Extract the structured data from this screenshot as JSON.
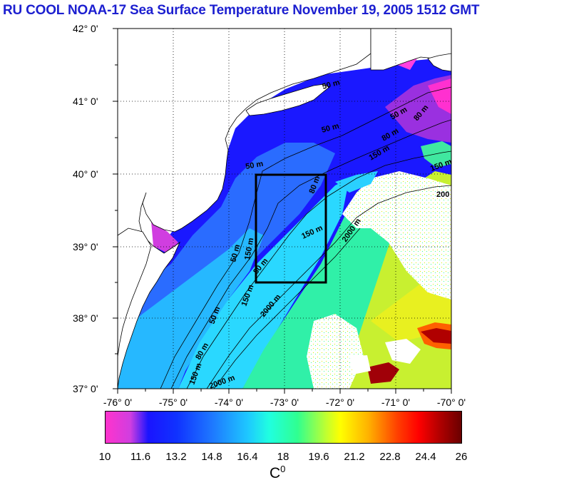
{
  "title": "RU COOL  NOAA-17 Sea Surface Temperature November 19, 2005 1512 GMT",
  "lat_labels": [
    "42° 0'",
    "41° 0'",
    "40° 0'",
    "39° 0'",
    "38° 0'",
    "37° 0'"
  ],
  "lon_labels": [
    "-76° 0'",
    "-75° 0'",
    "-74° 0'",
    "-73° 0'",
    "-72° 0'",
    "-71° 0'",
    "-70° 0'"
  ],
  "contour_labels": {
    "m50": "50 m",
    "m80": "80 m",
    "m150": "150 m",
    "m200": "200",
    "m2000": "2000 m"
  },
  "colorbar": {
    "ticks": [
      "10",
      "11.6",
      "13.2",
      "14.8",
      "16.4",
      "18",
      "19.6",
      "21.2",
      "22.8",
      "24.4",
      "26"
    ],
    "unit": "C",
    "unit_sup": "0"
  },
  "study_box": {
    "lon_min": -73.4,
    "lon_max": -72.4,
    "lat_min": 38.5,
    "lat_max": 40.0
  },
  "colors": {
    "title": "#1c1fd0",
    "ocean_cold": "#1a14ff",
    "ocean_mid": "#1ec8ff",
    "warm": "#ffff00",
    "hot": "#b00000",
    "coast_sst": "#ff33cc"
  }
}
